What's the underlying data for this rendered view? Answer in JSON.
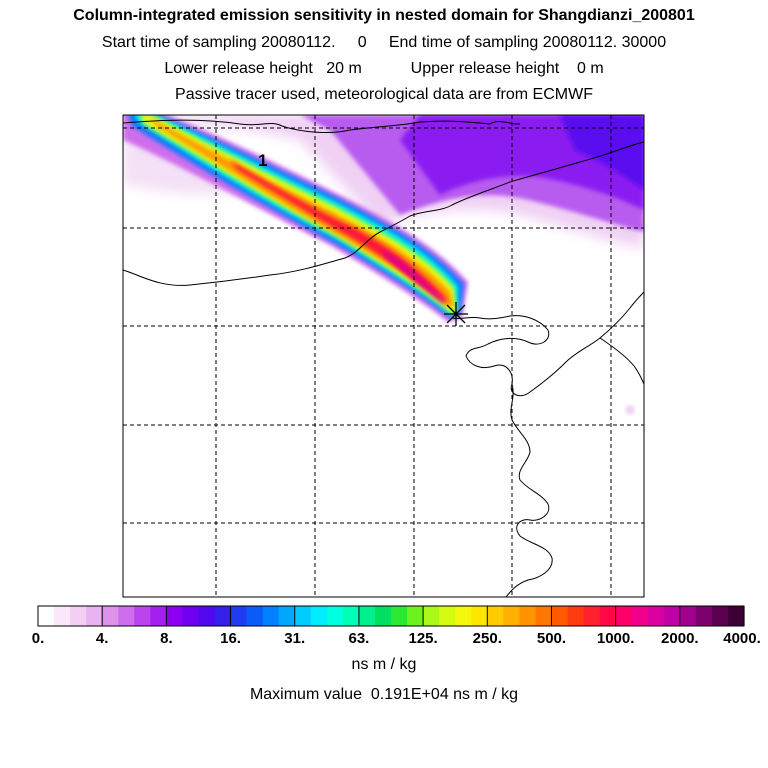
{
  "header": {
    "title": "Column-integrated emission sensitivity in nested domain for Shangdianzi_200801",
    "line2": "Start time of sampling 20080112.     0     End time of sampling 20080112. 30000",
    "line3": "Lower release height   20 m           Upper release height    0 m",
    "line4": "Passive tracer used, meteorological data are from ECMWF"
  },
  "chart_data": {
    "type": "heatmap",
    "title": "Column-integrated emission sensitivity in nested domain for Shangdianzi_200801",
    "plume_annotation": "1",
    "source_marker": "receptor-star",
    "grid": true,
    "colorbar": {
      "tick_labels": [
        "0.",
        "4.",
        "8.",
        "16.",
        "31.",
        "63.",
        "125.",
        "250.",
        "500.",
        "1000.",
        "2000.",
        "4000."
      ],
      "tick_values": [
        0,
        4,
        8,
        16,
        31,
        63,
        125,
        250,
        500,
        1000,
        2000,
        4000
      ],
      "colors": [
        "#ffffff",
        "#fbe8fb",
        "#f4cff4",
        "#eab3ef",
        "#df92ec",
        "#cf6eec",
        "#bb44ee",
        "#a51ff0",
        "#8c00f2",
        "#7000f2",
        "#5208ee",
        "#3520ec",
        "#1f3cf2",
        "#0a5cfb",
        "#0080ff",
        "#00a6ff",
        "#00cbff",
        "#00ecff",
        "#00ffe0",
        "#00ffb6",
        "#00f08c",
        "#00e060",
        "#2ce834",
        "#6ef21e",
        "#a8f818",
        "#d6fb12",
        "#f4f80c",
        "#ffe600",
        "#ffcc00",
        "#ffb000",
        "#ff9400",
        "#ff7600",
        "#ff5a00",
        "#ff3c10",
        "#ff2030",
        "#ff0848",
        "#ff0068",
        "#f2008a",
        "#dc00a0",
        "#c000a6",
        "#a0008e",
        "#7e006e",
        "#5c0050",
        "#3e0034"
      ],
      "units": "ns m / kg"
    },
    "max_value_label": "Maximum value  0.191E+04 ns m / kg",
    "max_value": 1910
  }
}
